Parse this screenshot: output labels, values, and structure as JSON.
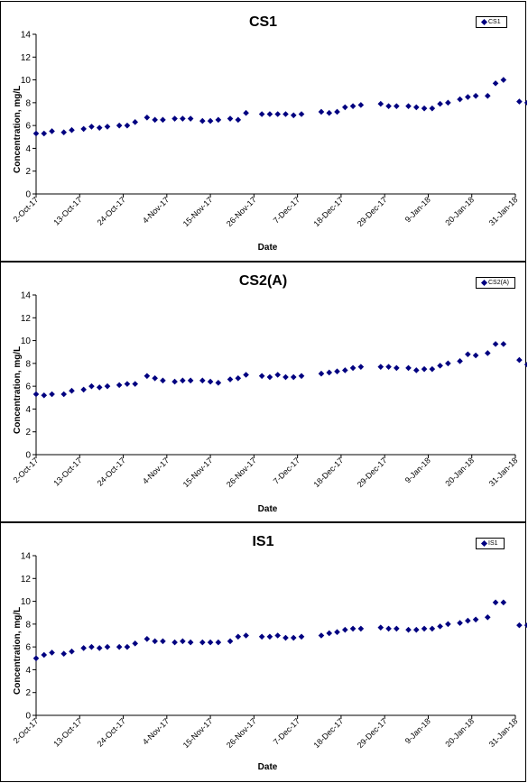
{
  "colors": {
    "series": "#000080",
    "axis": "#000000",
    "frame": "#000000"
  },
  "chart_data": [
    {
      "type": "scatter",
      "title": "CS1",
      "xlabel": "Date",
      "ylabel": "Concentration, mg/L",
      "legend": {
        "entry": "CS1",
        "placement": "top-right"
      },
      "x_type": "date",
      "xlim": [
        "2017-10-02",
        "2018-01-31"
      ],
      "ylim": [
        0,
        14
      ],
      "yticks": [
        0,
        2,
        4,
        6,
        8,
        10,
        12,
        14
      ],
      "xtick_labels": [
        "2-Oct-17",
        "13-Oct-17",
        "24-Oct-17",
        "4-Nov-17",
        "15-Nov-17",
        "26-Nov-17",
        "7-Dec-17",
        "18-Dec-17",
        "29-Dec-17",
        "9-Jan-18",
        "20-Jan-18",
        "31-Jan-18"
      ],
      "xtick_dates": [
        "2017-10-02",
        "2017-10-13",
        "2017-10-24",
        "2017-11-04",
        "2017-11-15",
        "2017-11-26",
        "2017-12-07",
        "2017-12-18",
        "2017-12-29",
        "2018-01-09",
        "2018-01-20",
        "2018-01-31"
      ],
      "grid": false,
      "series": [
        {
          "name": "CS1",
          "points": [
            [
              "2017-10-02",
              5.3
            ],
            [
              "2017-10-04",
              5.3
            ],
            [
              "2017-10-06",
              5.5
            ],
            [
              "2017-10-09",
              5.4
            ],
            [
              "2017-10-11",
              5.6
            ],
            [
              "2017-10-14",
              5.7
            ],
            [
              "2017-10-16",
              5.9
            ],
            [
              "2017-10-18",
              5.8
            ],
            [
              "2017-10-20",
              5.9
            ],
            [
              "2017-10-23",
              6.0
            ],
            [
              "2017-10-25",
              6.0
            ],
            [
              "2017-10-27",
              6.3
            ],
            [
              "2017-10-30",
              6.7
            ],
            [
              "2017-11-01",
              6.5
            ],
            [
              "2017-11-03",
              6.5
            ],
            [
              "2017-11-06",
              6.6
            ],
            [
              "2017-11-08",
              6.6
            ],
            [
              "2017-11-10",
              6.6
            ],
            [
              "2017-11-13",
              6.4
            ],
            [
              "2017-11-15",
              6.4
            ],
            [
              "2017-11-17",
              6.5
            ],
            [
              "2017-11-20",
              6.6
            ],
            [
              "2017-11-22",
              6.5
            ],
            [
              "2017-11-24",
              7.1
            ],
            [
              "2017-11-28",
              7.0
            ],
            [
              "2017-11-30",
              7.0
            ],
            [
              "2017-12-02",
              7.0
            ],
            [
              "2017-12-04",
              7.0
            ],
            [
              "2017-12-06",
              6.9
            ],
            [
              "2017-12-08",
              7.0
            ],
            [
              "2017-12-13",
              7.2
            ],
            [
              "2017-12-15",
              7.1
            ],
            [
              "2017-12-17",
              7.2
            ],
            [
              "2017-12-19",
              7.6
            ],
            [
              "2017-12-21",
              7.7
            ],
            [
              "2017-12-23",
              7.8
            ],
            [
              "2017-12-28",
              7.9
            ],
            [
              "2017-12-30",
              7.7
            ],
            [
              "2018-01-01",
              7.7
            ],
            [
              "2018-01-04",
              7.7
            ],
            [
              "2018-01-06",
              7.6
            ],
            [
              "2018-01-08",
              7.5
            ],
            [
              "2018-01-10",
              7.5
            ],
            [
              "2018-01-12",
              7.9
            ],
            [
              "2018-01-14",
              8.0
            ],
            [
              "2018-01-17",
              8.3
            ],
            [
              "2018-01-19",
              8.5
            ],
            [
              "2018-01-21",
              8.6
            ],
            [
              "2018-01-24",
              8.6
            ],
            [
              "2018-01-26",
              9.7
            ],
            [
              "2018-01-28",
              10.0
            ],
            [
              "2018-02-01",
              8.1
            ],
            [
              "2018-02-03",
              8.0
            ]
          ]
        }
      ]
    },
    {
      "type": "scatter",
      "title": "CS2(A)",
      "xlabel": "Date",
      "ylabel": "Concentration, mg/L",
      "legend": {
        "entry": "CS2(A)",
        "placement": "top-right"
      },
      "x_type": "date",
      "xlim": [
        "2017-10-02",
        "2018-01-31"
      ],
      "ylim": [
        0,
        14
      ],
      "yticks": [
        0,
        2,
        4,
        6,
        8,
        10,
        12,
        14
      ],
      "xtick_labels": [
        "2-Oct-17",
        "13-Oct-17",
        "24-Oct-17",
        "4-Nov-17",
        "15-Nov-17",
        "26-Nov-17",
        "7-Dec-17",
        "18-Dec-17",
        "29-Dec-17",
        "9-Jan-18",
        "20-Jan-18",
        "31-Jan-18"
      ],
      "xtick_dates": [
        "2017-10-02",
        "2017-10-13",
        "2017-10-24",
        "2017-11-04",
        "2017-11-15",
        "2017-11-26",
        "2017-12-07",
        "2017-12-18",
        "2017-12-29",
        "2018-01-09",
        "2018-01-20",
        "2018-01-31"
      ],
      "grid": false,
      "series": [
        {
          "name": "CS2(A)",
          "points": [
            [
              "2017-10-02",
              5.3
            ],
            [
              "2017-10-04",
              5.2
            ],
            [
              "2017-10-06",
              5.3
            ],
            [
              "2017-10-09",
              5.3
            ],
            [
              "2017-10-11",
              5.6
            ],
            [
              "2017-10-14",
              5.7
            ],
            [
              "2017-10-16",
              6.0
            ],
            [
              "2017-10-18",
              5.9
            ],
            [
              "2017-10-20",
              6.0
            ],
            [
              "2017-10-23",
              6.1
            ],
            [
              "2017-10-25",
              6.2
            ],
            [
              "2017-10-27",
              6.2
            ],
            [
              "2017-10-30",
              6.9
            ],
            [
              "2017-11-01",
              6.7
            ],
            [
              "2017-11-03",
              6.5
            ],
            [
              "2017-11-06",
              6.4
            ],
            [
              "2017-11-08",
              6.5
            ],
            [
              "2017-11-10",
              6.5
            ],
            [
              "2017-11-13",
              6.5
            ],
            [
              "2017-11-15",
              6.4
            ],
            [
              "2017-11-17",
              6.3
            ],
            [
              "2017-11-20",
              6.6
            ],
            [
              "2017-11-22",
              6.7
            ],
            [
              "2017-11-24",
              7.0
            ],
            [
              "2017-11-28",
              6.9
            ],
            [
              "2017-11-30",
              6.8
            ],
            [
              "2017-12-02",
              7.0
            ],
            [
              "2017-12-04",
              6.8
            ],
            [
              "2017-12-06",
              6.8
            ],
            [
              "2017-12-08",
              6.9
            ],
            [
              "2017-12-13",
              7.1
            ],
            [
              "2017-12-15",
              7.2
            ],
            [
              "2017-12-17",
              7.3
            ],
            [
              "2017-12-19",
              7.4
            ],
            [
              "2017-12-21",
              7.6
            ],
            [
              "2017-12-23",
              7.7
            ],
            [
              "2017-12-28",
              7.7
            ],
            [
              "2017-12-30",
              7.7
            ],
            [
              "2018-01-01",
              7.6
            ],
            [
              "2018-01-04",
              7.6
            ],
            [
              "2018-01-06",
              7.4
            ],
            [
              "2018-01-08",
              7.5
            ],
            [
              "2018-01-10",
              7.5
            ],
            [
              "2018-01-12",
              7.8
            ],
            [
              "2018-01-14",
              8.0
            ],
            [
              "2018-01-17",
              8.2
            ],
            [
              "2018-01-19",
              8.8
            ],
            [
              "2018-01-21",
              8.7
            ],
            [
              "2018-01-24",
              8.9
            ],
            [
              "2018-01-26",
              9.7
            ],
            [
              "2018-01-28",
              9.7
            ],
            [
              "2018-02-01",
              8.3
            ],
            [
              "2018-02-03",
              7.9
            ]
          ]
        }
      ]
    },
    {
      "type": "scatter",
      "title": "IS1",
      "xlabel": "Date",
      "ylabel": "Concentration, mg/L",
      "legend": {
        "entry": "IS1",
        "placement": "top-right"
      },
      "x_type": "date",
      "xlim": [
        "2017-10-02",
        "2018-01-31"
      ],
      "ylim": [
        0,
        14
      ],
      "yticks": [
        0,
        2,
        4,
        6,
        8,
        10,
        12,
        14
      ],
      "xtick_labels": [
        "2-Oct-17",
        "13-Oct-17",
        "24-Oct-17",
        "4-Nov-17",
        "15-Nov-17",
        "26-Nov-17",
        "7-Dec-17",
        "18-Dec-17",
        "29-Dec-17",
        "9-Jan-18",
        "20-Jan-18",
        "31-Jan-18"
      ],
      "xtick_dates": [
        "2017-10-02",
        "2017-10-13",
        "2017-10-24",
        "2017-11-04",
        "2017-11-15",
        "2017-11-26",
        "2017-12-07",
        "2017-12-18",
        "2017-12-29",
        "2018-01-09",
        "2018-01-20",
        "2018-01-31"
      ],
      "grid": false,
      "series": [
        {
          "name": "IS1",
          "points": [
            [
              "2017-10-02",
              5.0
            ],
            [
              "2017-10-04",
              5.3
            ],
            [
              "2017-10-06",
              5.5
            ],
            [
              "2017-10-09",
              5.4
            ],
            [
              "2017-10-11",
              5.6
            ],
            [
              "2017-10-14",
              5.9
            ],
            [
              "2017-10-16",
              6.0
            ],
            [
              "2017-10-18",
              5.9
            ],
            [
              "2017-10-20",
              6.0
            ],
            [
              "2017-10-23",
              6.0
            ],
            [
              "2017-10-25",
              6.0
            ],
            [
              "2017-10-27",
              6.3
            ],
            [
              "2017-10-30",
              6.7
            ],
            [
              "2017-11-01",
              6.5
            ],
            [
              "2017-11-03",
              6.5
            ],
            [
              "2017-11-06",
              6.4
            ],
            [
              "2017-11-08",
              6.5
            ],
            [
              "2017-11-10",
              6.4
            ],
            [
              "2017-11-13",
              6.4
            ],
            [
              "2017-11-15",
              6.4
            ],
            [
              "2017-11-17",
              6.4
            ],
            [
              "2017-11-20",
              6.5
            ],
            [
              "2017-11-22",
              6.9
            ],
            [
              "2017-11-24",
              7.0
            ],
            [
              "2017-11-28",
              6.9
            ],
            [
              "2017-11-30",
              6.9
            ],
            [
              "2017-12-02",
              7.0
            ],
            [
              "2017-12-04",
              6.8
            ],
            [
              "2017-12-06",
              6.8
            ],
            [
              "2017-12-08",
              6.9
            ],
            [
              "2017-12-13",
              7.0
            ],
            [
              "2017-12-15",
              7.2
            ],
            [
              "2017-12-17",
              7.3
            ],
            [
              "2017-12-19",
              7.5
            ],
            [
              "2017-12-21",
              7.6
            ],
            [
              "2017-12-23",
              7.6
            ],
            [
              "2017-12-28",
              7.7
            ],
            [
              "2017-12-30",
              7.6
            ],
            [
              "2018-01-01",
              7.6
            ],
            [
              "2018-01-04",
              7.5
            ],
            [
              "2018-01-06",
              7.5
            ],
            [
              "2018-01-08",
              7.6
            ],
            [
              "2018-01-10",
              7.6
            ],
            [
              "2018-01-12",
              7.8
            ],
            [
              "2018-01-14",
              8.0
            ],
            [
              "2018-01-17",
              8.1
            ],
            [
              "2018-01-19",
              8.3
            ],
            [
              "2018-01-21",
              8.4
            ],
            [
              "2018-01-24",
              8.6
            ],
            [
              "2018-01-26",
              9.9
            ],
            [
              "2018-01-28",
              9.9
            ],
            [
              "2018-02-01",
              7.9
            ],
            [
              "2018-02-03",
              7.9
            ]
          ]
        }
      ]
    }
  ]
}
